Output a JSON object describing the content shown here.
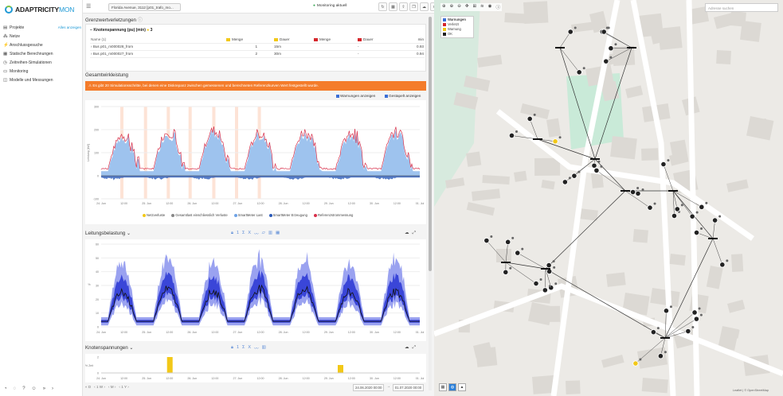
{
  "app": {
    "logo_text": "ADAPTRICITY",
    "logo_suffix": "MON"
  },
  "sidebar": {
    "items": [
      {
        "icon": "folder-icon",
        "label": "Projekte",
        "extra": "Alles anzeigen"
      },
      {
        "icon": "network-icon",
        "label": "Netze",
        "extra": ""
      },
      {
        "icon": "plug-icon",
        "label": "Anschlussgesuche",
        "extra": ""
      },
      {
        "icon": "calculator-icon",
        "label": "Statische Berechnungen",
        "extra": ""
      },
      {
        "icon": "clock-icon",
        "label": "Zeitreihen-Simulationen",
        "extra": ""
      },
      {
        "icon": "monitor-icon",
        "label": "Monitoring",
        "extra": ""
      },
      {
        "icon": "chart-icon",
        "label": "Modelle und Messungen",
        "extra": ""
      }
    ],
    "footer_icons": [
      "bell-icon",
      "chat-icon",
      "help-icon",
      "user-icon",
      "expand-icon",
      "arrow-icon"
    ]
  },
  "topbar": {
    "menu_icon": "menu-icon",
    "project_select": "Florida Avenue, 3112 [p01_trafo_mo...",
    "monitoring_status": "Monitoring aktuell",
    "toolbar_icons": [
      "refresh-icon",
      "table-icon",
      "upload-icon",
      "copy-icon",
      "cloud-icon",
      "layers-icon",
      "file-icon"
    ]
  },
  "limits": {
    "title": "Grenzwertverletzungen",
    "subtitle": "Knotenspannung (pu) (min)",
    "badge": "3",
    "columns": [
      "Name (1)",
      "Menge",
      "Dauer",
      "Menge",
      "Dauer",
      "min"
    ],
    "rows": [
      {
        "name": "Bus p01_m000028_from",
        "count": "1",
        "duration": "15m",
        "count2": "",
        "duration2": "-",
        "min": "0.93"
      },
      {
        "name": "Bus p01_m000027_from",
        "count": "2",
        "duration": "30m",
        "count2": "",
        "duration2": "-",
        "min": "0.94"
      }
    ]
  },
  "overall": {
    "title": "Gesamtwirkleistung",
    "alert": "Es gibt 20 Simulationsschritte, bei denen eine Diskrepanz zwischen gemessenen und berechneten Referenzkurven Wert festgestellt wurde.",
    "chk_warnings": "Warnungen anzeigen",
    "chk_stacked": "Gestapelt anzeigen",
    "legend": [
      "Netzverluste",
      "Gesamtlast einschliesslich Verluste",
      "SmartMeter Last",
      "SmartMeter Erzeugung",
      "Referenzstrommessung"
    ]
  },
  "line_load": {
    "title": "Leitungsbelastung",
    "ctrl": [
      "1",
      "Σ",
      "X"
    ]
  },
  "node_voltage": {
    "title": "Knotenspannungen",
    "ctrl": [
      "1",
      "Σ",
      "X"
    ]
  },
  "bottom": {
    "nav": [
      "« D",
      "‹ 1 W ›",
      "‹ M ›",
      "‹ 1 Y ›"
    ],
    "date_from": "24.06.2020 00:00",
    "to_label": "→",
    "date_to": "01.07.2020 00:00"
  },
  "map": {
    "search_placeholder": "Adresse suchen",
    "legend_title": "Warnungen",
    "legend_items": [
      "Verletzt",
      "Warnung",
      "OK"
    ],
    "legend_colors": [
      "#d6262b",
      "#f2c818",
      "#222222"
    ],
    "tools": [
      "crosshair-icon",
      "zoom-in-icon",
      "zoom-out-icon",
      "move-icon",
      "ruler-icon",
      "layers-icon",
      "eye-icon",
      "info-icon"
    ],
    "bottom_tools": [
      "grid-icon",
      "globe-icon",
      "shapes-icon"
    ],
    "scale": "Leaflet | © OpenStreetMap"
  },
  "chart_data": [
    {
      "type": "area",
      "title": "Gesamtwirkleistung",
      "ylabel": "Leistung [kW]",
      "x": [
        "24. Jun",
        "12:00",
        "25. Jun",
        "12:00",
        "26. Jun",
        "12:00",
        "27. Jun",
        "12:00",
        "28. Jun",
        "12:00",
        "29. Jun",
        "12:00",
        "30. Jun",
        "12:00",
        "01. Jul"
      ],
      "ylim": [
        -100,
        300
      ],
      "yticks": [
        300,
        200,
        100,
        0,
        -100
      ],
      "daily_peaks_kw": [
        205,
        225,
        230,
        215,
        220,
        205,
        220
      ]
    },
    {
      "type": "area",
      "title": "Leitungsbelastung",
      "ylabel": "%",
      "x": [
        "24. Jun",
        "12:00",
        "25. Jun",
        "12:00",
        "26. Jun",
        "12:00",
        "27. Jun",
        "12:00",
        "28. Jun",
        "12:00",
        "29. Jun",
        "12:00",
        "30. Jun",
        "12:00",
        "01. Jul"
      ],
      "ylim": [
        0,
        60
      ],
      "yticks": [
        60,
        50,
        40,
        30,
        20,
        10,
        0
      ],
      "daily_max_pct": [
        46,
        48,
        47,
        50,
        48,
        46,
        49
      ],
      "daily_median_pct": [
        22,
        24,
        23,
        25,
        24,
        22,
        23
      ]
    },
    {
      "type": "bar",
      "title": "Knotenspannungen",
      "ylabel": "% Zeit",
      "x": [
        "24. Jun",
        "12:00",
        "25. Jun",
        "12:00",
        "26. Jun",
        "12:00",
        "27. Jun",
        "12:00",
        "28. Jun",
        "12:00",
        "29. Jun",
        "12:00",
        "30. Jun",
        "12:00",
        "01. Jul"
      ],
      "ylim": [
        0,
        2
      ],
      "yticks": [
        2,
        0
      ],
      "highlight_bars": [
        {
          "x": "25. Jun 12:00",
          "value": 2
        },
        {
          "x": "29. Jun 06:00",
          "value": 1
        }
      ]
    }
  ]
}
